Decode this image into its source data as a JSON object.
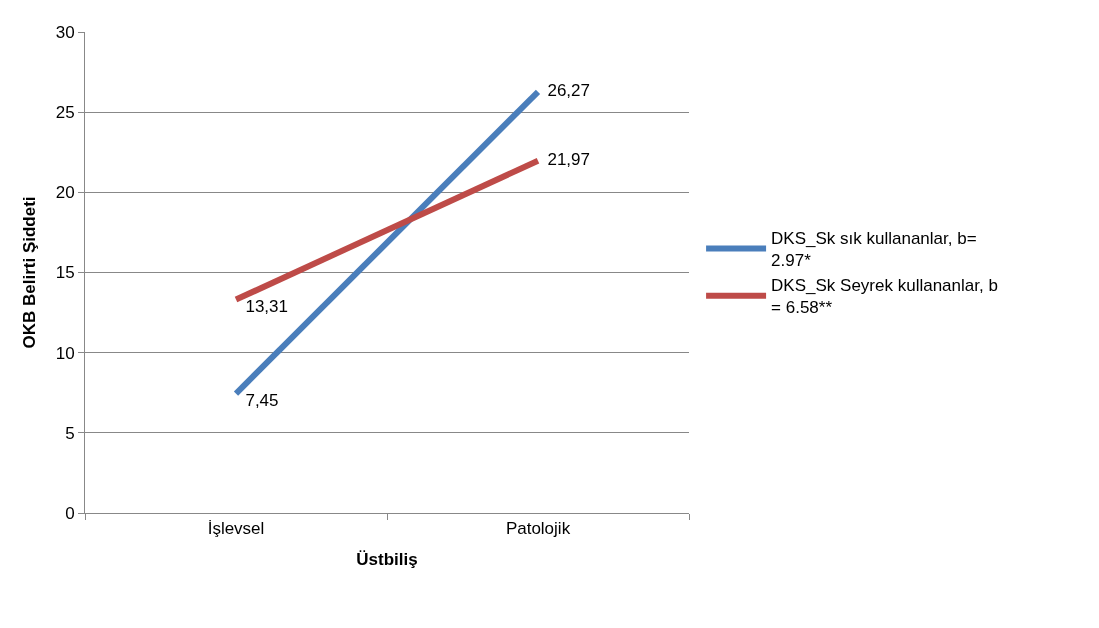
{
  "chart_data": {
    "type": "line",
    "xlabel": "Üstbiliş",
    "ylabel": "OKB Belirti Şiddeti",
    "categories": [
      "İşlevsel",
      "Patolojik"
    ],
    "series": [
      {
        "name": "DKS_Sk sık kullananlar, b= 2.97*",
        "color": "#4a7ebb",
        "values": [
          7.45,
          26.27
        ],
        "value_labels": [
          "7,45",
          "26,27"
        ]
      },
      {
        "name": "DKS_Sk Seyrek kullananlar, b = 6.58**",
        "color": "#be4b48",
        "values": [
          13.31,
          21.97
        ],
        "value_labels": [
          "13,31",
          "21,97"
        ]
      }
    ],
    "ylim": [
      0,
      30
    ],
    "yticks": [
      0,
      5,
      10,
      15,
      20,
      25,
      30
    ],
    "grid": "y",
    "legend": "right",
    "marker": "none",
    "line_style": "solid"
  }
}
